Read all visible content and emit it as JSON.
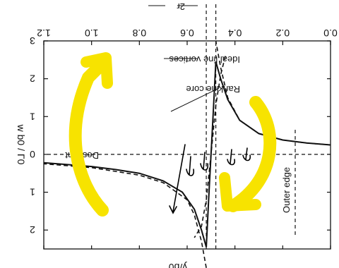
{
  "chart_data": {
    "type": "line",
    "orientation": "rotated-180",
    "xlabel": "y/b0",
    "ylabel": "w b0 / Γ0",
    "xlim": [
      0.0,
      1.2
    ],
    "ylim": [
      -3,
      2.5
    ],
    "xticks": [
      "0.0",
      "0.2",
      "0.4",
      "0.6",
      "0.8",
      "1.0",
      "1.2"
    ],
    "yticks": [
      {
        "value": -3,
        "label": "3"
      },
      {
        "value": -2,
        "label": "2"
      },
      {
        "value": -1,
        "label": "1"
      },
      {
        "value": 0,
        "label": "0"
      },
      {
        "value": 1,
        "label": "1"
      },
      {
        "value": 2,
        "label": "2"
      }
    ],
    "grid": false,
    "vortex_y": 0.5,
    "core_radius": 0.02,
    "series": [
      {
        "name": "Ideal line vortices",
        "style": "dashed",
        "points": [
          [
            0.0,
            -0.25
          ],
          [
            0.1,
            -0.3
          ],
          [
            0.2,
            -0.38
          ],
          [
            0.3,
            -0.55
          ],
          [
            0.38,
            -0.9
          ],
          [
            0.43,
            -1.5
          ],
          [
            0.46,
            -2.3
          ],
          [
            0.48,
            -3.0
          ],
          [
            0.52,
            3.0
          ],
          [
            0.54,
            2.3
          ],
          [
            0.57,
            1.6
          ],
          [
            0.6,
            1.2
          ],
          [
            0.7,
            0.75
          ],
          [
            0.8,
            0.55
          ],
          [
            0.9,
            0.45
          ],
          [
            1.0,
            0.35
          ],
          [
            1.1,
            0.3
          ],
          [
            1.2,
            0.25
          ]
        ]
      },
      {
        "name": "Rankine core",
        "style": "solid",
        "points": [
          [
            0.0,
            -0.25
          ],
          [
            0.1,
            -0.3
          ],
          [
            0.2,
            -0.38
          ],
          [
            0.3,
            -0.55
          ],
          [
            0.38,
            -0.9
          ],
          [
            0.43,
            -1.45
          ],
          [
            0.46,
            -2.0
          ],
          [
            0.48,
            -2.45
          ],
          [
            0.49,
            -1.2
          ],
          [
            0.5,
            0.0
          ],
          [
            0.51,
            1.2
          ],
          [
            0.52,
            2.45
          ],
          [
            0.54,
            2.0
          ],
          [
            0.57,
            1.45
          ],
          [
            0.62,
            1.0
          ],
          [
            0.7,
            0.7
          ],
          [
            0.8,
            0.5
          ],
          [
            0.9,
            0.4
          ],
          [
            1.0,
            0.32
          ],
          [
            1.1,
            0.27
          ],
          [
            1.2,
            0.22
          ]
        ]
      },
      {
        "name": "",
        "style": "dashed",
        "points": [
          [
            0.44,
            -2.6
          ],
          [
            0.46,
            -2.1
          ],
          [
            0.48,
            -1.3
          ],
          [
            0.5,
            0.0
          ],
          [
            0.52,
            1.2
          ],
          [
            0.54,
            1.9
          ],
          [
            0.57,
            2.2
          ]
        ]
      }
    ],
    "reference_lines": [
      {
        "orientation": "horizontal",
        "value": 0,
        "style": "dashed"
      },
      {
        "orientation": "vertical",
        "value": 0.48,
        "style": "dashed"
      },
      {
        "orientation": "vertical",
        "value": 0.52,
        "style": "dashed"
      },
      {
        "orientation": "vertical",
        "value": 0.0,
        "style": "dashed",
        "label": "Outer edge"
      }
    ],
    "annotations": [
      {
        "text": "Ideal line vortices"
      },
      {
        "text": "Rankine core"
      },
      {
        "text": "Descent"
      },
      {
        "text": "Outer edge"
      },
      {
        "text": "2r"
      }
    ],
    "overlay_colors": {
      "highlight": "#f7e300",
      "pen": "#000000"
    }
  }
}
